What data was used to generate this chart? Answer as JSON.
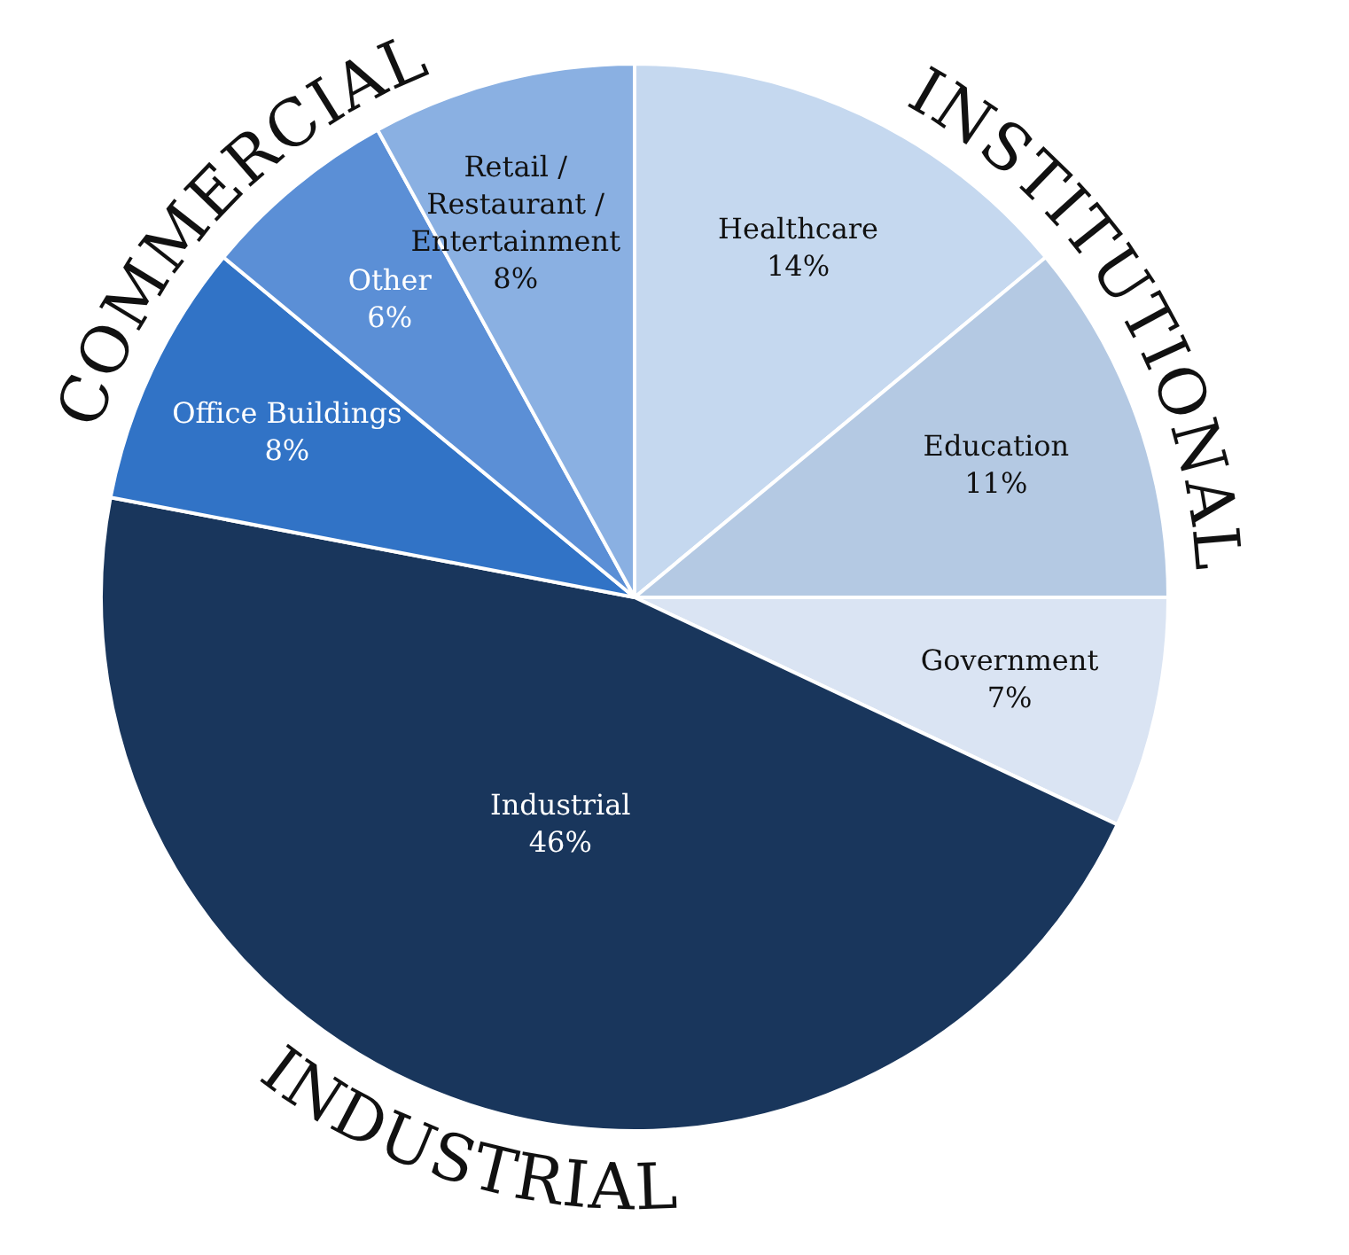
{
  "chart_data": {
    "type": "pie",
    "categories": [
      "Healthcare",
      "Education",
      "Government",
      "Industrial",
      "Office Buildings",
      "Other",
      "Retail / Restaurant / Entertainment"
    ],
    "values": [
      14,
      11,
      7,
      46,
      8,
      6,
      8
    ],
    "colors": [
      "#c5d8ef",
      "#b4c9e3",
      "#dae4f3",
      "#19365c",
      "#3173c6",
      "#5b8fd6",
      "#8ab0e2"
    ],
    "value_labels": [
      "14%",
      "11%",
      "7%",
      "46%",
      "8%",
      "6%",
      "8%"
    ],
    "annotations": [
      "COMMERCIAL",
      "INSTITUTIONAL",
      "INDUSTRIAL"
    ],
    "legend": false
  }
}
